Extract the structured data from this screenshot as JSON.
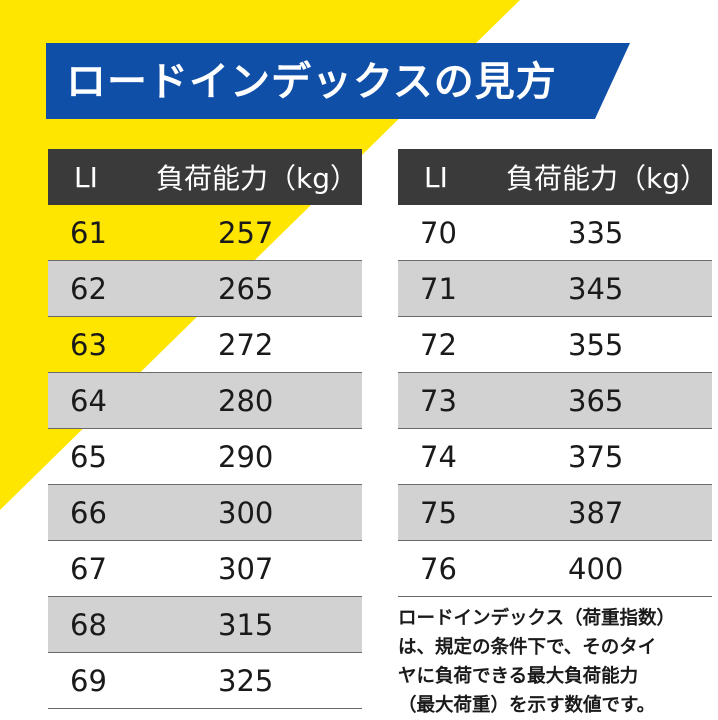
{
  "colors": {
    "accent_yellow": "#ffe600",
    "banner_blue": "#0f4fa8",
    "header_dark": "#3a3a3a",
    "row_gray": "#d2d2d2"
  },
  "title": "ロードインデックスの見方",
  "table_header": {
    "li": "LI",
    "capacity": "負荷能力（kg）"
  },
  "left_table": [
    {
      "li": "61",
      "kg": "257"
    },
    {
      "li": "62",
      "kg": "265"
    },
    {
      "li": "63",
      "kg": "272"
    },
    {
      "li": "64",
      "kg": "280"
    },
    {
      "li": "65",
      "kg": "290"
    },
    {
      "li": "66",
      "kg": "300"
    },
    {
      "li": "67",
      "kg": "307"
    },
    {
      "li": "68",
      "kg": "315"
    },
    {
      "li": "69",
      "kg": "325"
    }
  ],
  "right_table": [
    {
      "li": "70",
      "kg": "335"
    },
    {
      "li": "71",
      "kg": "345"
    },
    {
      "li": "72",
      "kg": "355"
    },
    {
      "li": "73",
      "kg": "365"
    },
    {
      "li": "74",
      "kg": "375"
    },
    {
      "li": "75",
      "kg": "387"
    },
    {
      "li": "76",
      "kg": "400"
    }
  ],
  "note_lines": [
    "ロードインデックス（荷重指数）",
    "は、規定の条件下で、そのタイ",
    "ヤに負荷できる最大負荷能力",
    "（最大荷重）を示す数値です。"
  ]
}
